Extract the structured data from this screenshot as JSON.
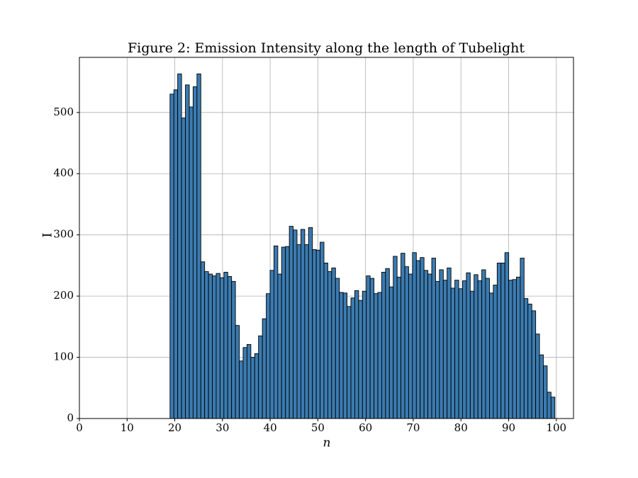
{
  "chart_data": {
    "type": "histogram",
    "title": "Figure 2: Emission Intensity along the length of Tubelight",
    "xlabel": "n",
    "ylabel": "I",
    "bins": [
      19.0,
      19.81,
      20.61,
      21.42,
      22.23,
      23.04,
      23.84,
      24.65,
      25.46,
      26.26,
      27.07,
      27.88,
      28.68,
      29.49,
      30.3,
      31.11,
      31.91,
      32.72,
      33.53,
      34.33,
      35.14,
      35.95,
      36.75,
      37.56,
      38.37,
      39.18,
      39.98,
      40.79,
      41.6,
      42.4,
      43.21,
      44.02,
      44.82,
      45.63,
      46.44,
      47.25,
      48.05,
      48.86,
      49.67,
      50.47,
      51.28,
      52.09,
      52.89,
      53.7,
      54.51,
      55.32,
      56.12,
      56.93,
      57.74,
      58.54,
      59.35,
      60.16,
      60.96,
      61.77,
      62.58,
      63.39,
      64.19,
      65.0,
      65.81,
      66.61,
      67.42,
      68.23,
      69.03,
      69.84,
      70.65,
      71.46,
      72.26,
      73.07,
      73.88,
      74.68,
      75.49,
      76.3,
      77.1,
      77.91,
      78.72,
      79.53,
      80.33,
      81.14,
      81.95,
      82.75,
      83.56,
      84.37,
      85.17,
      85.98,
      86.79,
      87.6,
      88.4,
      89.21,
      90.02,
      90.82,
      91.63,
      92.44,
      93.24,
      94.05,
      94.86,
      95.67,
      96.47,
      97.28,
      98.09,
      98.89,
      99.7
    ],
    "values": [
      530,
      537,
      563,
      491,
      545,
      509,
      542,
      563,
      256,
      240,
      236,
      233,
      237,
      230,
      239,
      232,
      224,
      152,
      94,
      116,
      121,
      100,
      106,
      135,
      163,
      204,
      242,
      282,
      236,
      280,
      281,
      314,
      308,
      284,
      309,
      284,
      312,
      276,
      275,
      288,
      254,
      240,
      246,
      229,
      206,
      205,
      183,
      197,
      209,
      193,
      208,
      233,
      229,
      204,
      206,
      239,
      245,
      215,
      265,
      231,
      270,
      248,
      236,
      271,
      258,
      263,
      242,
      236,
      262,
      224,
      243,
      226,
      246,
      213,
      226,
      212,
      225,
      238,
      208,
      235,
      225,
      243,
      229,
      205,
      218,
      254,
      254,
      271,
      226,
      227,
      231,
      262,
      196,
      187,
      176,
      138,
      104,
      86,
      43,
      35
    ],
    "color": "#3b7bb0",
    "xlim": [
      0,
      103.6
    ],
    "xticks": [
      0,
      10,
      20,
      30,
      40,
      50,
      60,
      70,
      80,
      90,
      100
    ],
    "ylim": [
      0,
      590
    ],
    "yticks": [
      0,
      100,
      200,
      300,
      400,
      500
    ],
    "grid": true
  }
}
